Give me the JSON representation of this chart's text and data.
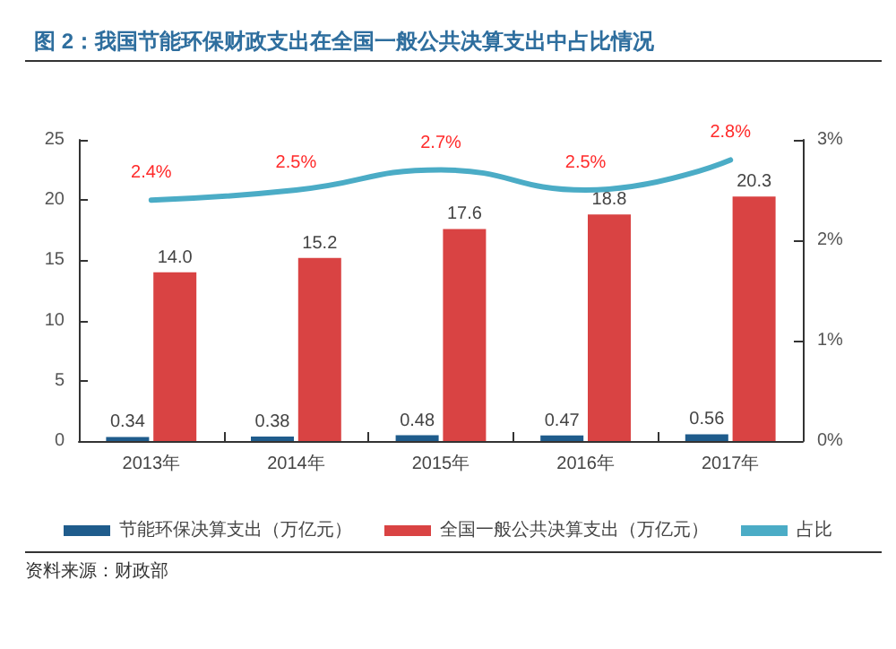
{
  "chart_data": {
    "type": "bar",
    "title": "图 2：我国节能环保财政支出在全国一般公共决算支出中占比情况",
    "categories": [
      "2013年",
      "2014年",
      "2015年",
      "2016年",
      "2017年"
    ],
    "series": [
      {
        "name": "节能环保决算支出（万亿元）",
        "color": "#1f5c8c",
        "values": [
          0.34,
          0.38,
          0.48,
          0.47,
          0.56
        ],
        "value_labels": [
          "0.34",
          "0.38",
          "0.48",
          "0.47",
          "0.56"
        ]
      },
      {
        "name": "全国一般公共决算支出（万亿元）",
        "color": "#d94343",
        "values": [
          14.0,
          15.2,
          17.6,
          18.8,
          20.3
        ],
        "value_labels": [
          "14.0",
          "15.2",
          "17.6",
          "18.8",
          "20.3"
        ]
      },
      {
        "name": "占比",
        "type": "line",
        "axis": "y2",
        "color": "#4bacc6",
        "marker": "none",
        "values": [
          2.4,
          2.5,
          2.7,
          2.5,
          2.8
        ],
        "value_labels": [
          "2.4%",
          "2.5%",
          "2.7%",
          "2.5%",
          "2.8%"
        ]
      }
    ],
    "ylim": [
      0,
      25
    ],
    "yticks": [
      0,
      5,
      10,
      15,
      20,
      25
    ],
    "y2lim": [
      0,
      3
    ],
    "y2ticks": [
      {
        "value": 0,
        "label": "0%"
      },
      {
        "value": 1,
        "label": "1%"
      },
      {
        "value": 2,
        "label": "2%"
      },
      {
        "value": 3,
        "label": "3%"
      }
    ],
    "grid": false,
    "legend": "bottom",
    "annotations": [
      "资料来源：财政部"
    ]
  }
}
